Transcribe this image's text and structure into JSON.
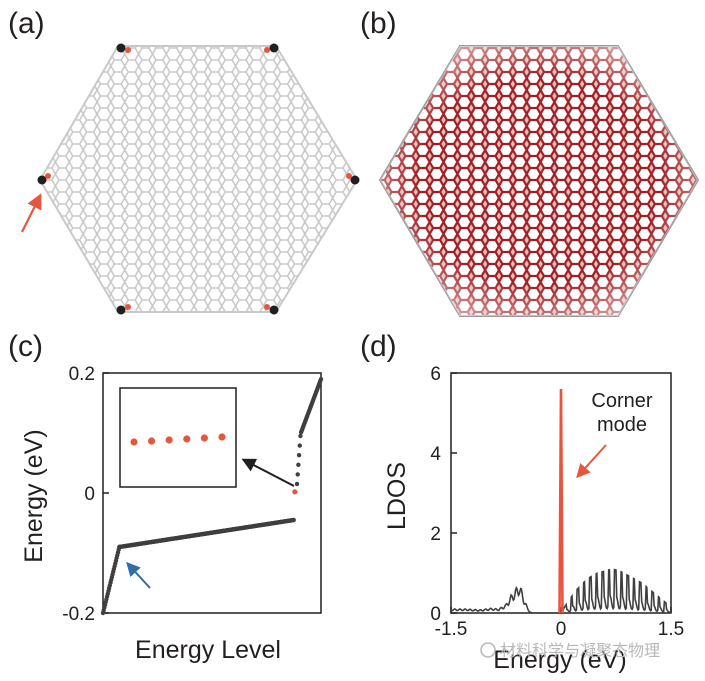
{
  "panels": {
    "a": {
      "label": "(a)",
      "description": "corner-localized mode on hexagonal lattice flake"
    },
    "b": {
      "label": "(b)",
      "description": "bulk-distributed mode on hexagonal lattice flake"
    },
    "c": {
      "label": "(c)"
    },
    "d": {
      "label": "(d)"
    }
  },
  "colors": {
    "lattice_gray": "#c9c9c9",
    "bulk_red": "#b3262b",
    "corner_red": "#e8553f",
    "dark_points": "#3f3f3f",
    "inset_points": "#e4573f",
    "blue_arrow": "#2d6ea6",
    "black_arrow": "#231f20"
  },
  "watermark": "材料科学与凝聚态物理",
  "chart_data": [
    {
      "panel": "c",
      "type": "scatter",
      "title": "",
      "xlabel": "Energy Level",
      "ylabel": "Energy (eV)",
      "ylim": [
        -0.2,
        0.2
      ],
      "xlim": [
        0,
        200
      ],
      "yticks": [
        {
          "value": 0.2,
          "label": "0.2"
        },
        {
          "value": 0,
          "label": "0"
        },
        {
          "value": -0.2,
          "label": "-0.2"
        }
      ],
      "series": [
        {
          "name": "lower band onset",
          "color": "#3f3f3f",
          "x_start": 0,
          "x_end": 15,
          "y_start": -0.2,
          "y_end": -0.09
        },
        {
          "name": "lower band plateau",
          "color": "#3f3f3f",
          "x_start": 15,
          "x_end": 175,
          "y_start": -0.09,
          "y_end": -0.045
        },
        {
          "name": "upper band",
          "color": "#3f3f3f",
          "x_start": 178,
          "x_end": 200,
          "y_start": 0.015,
          "y_end": 0.19
        },
        {
          "name": "corner modes",
          "color": "#e4573f",
          "x": [
            176
          ],
          "y": [
            0.002
          ]
        }
      ],
      "inset": {
        "points": 6,
        "color": "#e4573f",
        "y_values": [
          0.0,
          0.0005,
          0.001,
          0.0015,
          0.002,
          0.0025
        ]
      }
    },
    {
      "panel": "d",
      "type": "line",
      "title": "",
      "xlabel": "Energy (eV)",
      "ylabel": "LDOS",
      "xlim": [
        -1.5,
        1.5
      ],
      "ylim": [
        0,
        6
      ],
      "xticks": [
        {
          "value": -1.5,
          "label": "-1.5"
        },
        {
          "value": 0,
          "label": "0"
        },
        {
          "value": 1.5,
          "label": "1.5"
        }
      ],
      "yticks": [
        {
          "value": 0,
          "label": "0"
        },
        {
          "value": 2,
          "label": "2"
        },
        {
          "value": 4,
          "label": "4"
        },
        {
          "value": 6,
          "label": "6"
        }
      ],
      "annotation": {
        "line1": "Corner",
        "line2": "mode"
      },
      "series": [
        {
          "name": "bulk LDOS",
          "color": "#3f3f3f",
          "x": [
            -1.5,
            -1.3,
            -1.1,
            -0.95,
            -0.85,
            -0.75,
            -0.68,
            -0.62,
            -0.57,
            -0.53,
            -0.5,
            -0.46,
            -0.42,
            -0.38,
            -0.3,
            -0.2,
            -0.1,
            0.0,
            0.1,
            0.2,
            0.3,
            0.4,
            0.5,
            0.6,
            0.7,
            0.8,
            0.9,
            1.0,
            1.1,
            1.2,
            1.3,
            1.4,
            1.5
          ],
          "y": [
            0.1,
            0.1,
            0.08,
            0.12,
            0.1,
            0.22,
            0.45,
            0.6,
            0.75,
            0.55,
            0.35,
            0.15,
            0.02,
            0.0,
            0.0,
            0.0,
            0.0,
            0.0,
            0.3,
            0.55,
            0.75,
            0.9,
            1.0,
            1.05,
            1.1,
            1.05,
            0.95,
            0.85,
            0.75,
            0.6,
            0.45,
            0.3,
            0.15
          ]
        },
        {
          "name": "corner mode",
          "color": "#e8553f",
          "x": [
            -0.02,
            0.0,
            0.02
          ],
          "y": [
            0.0,
            5.6,
            0.0
          ]
        }
      ]
    }
  ]
}
